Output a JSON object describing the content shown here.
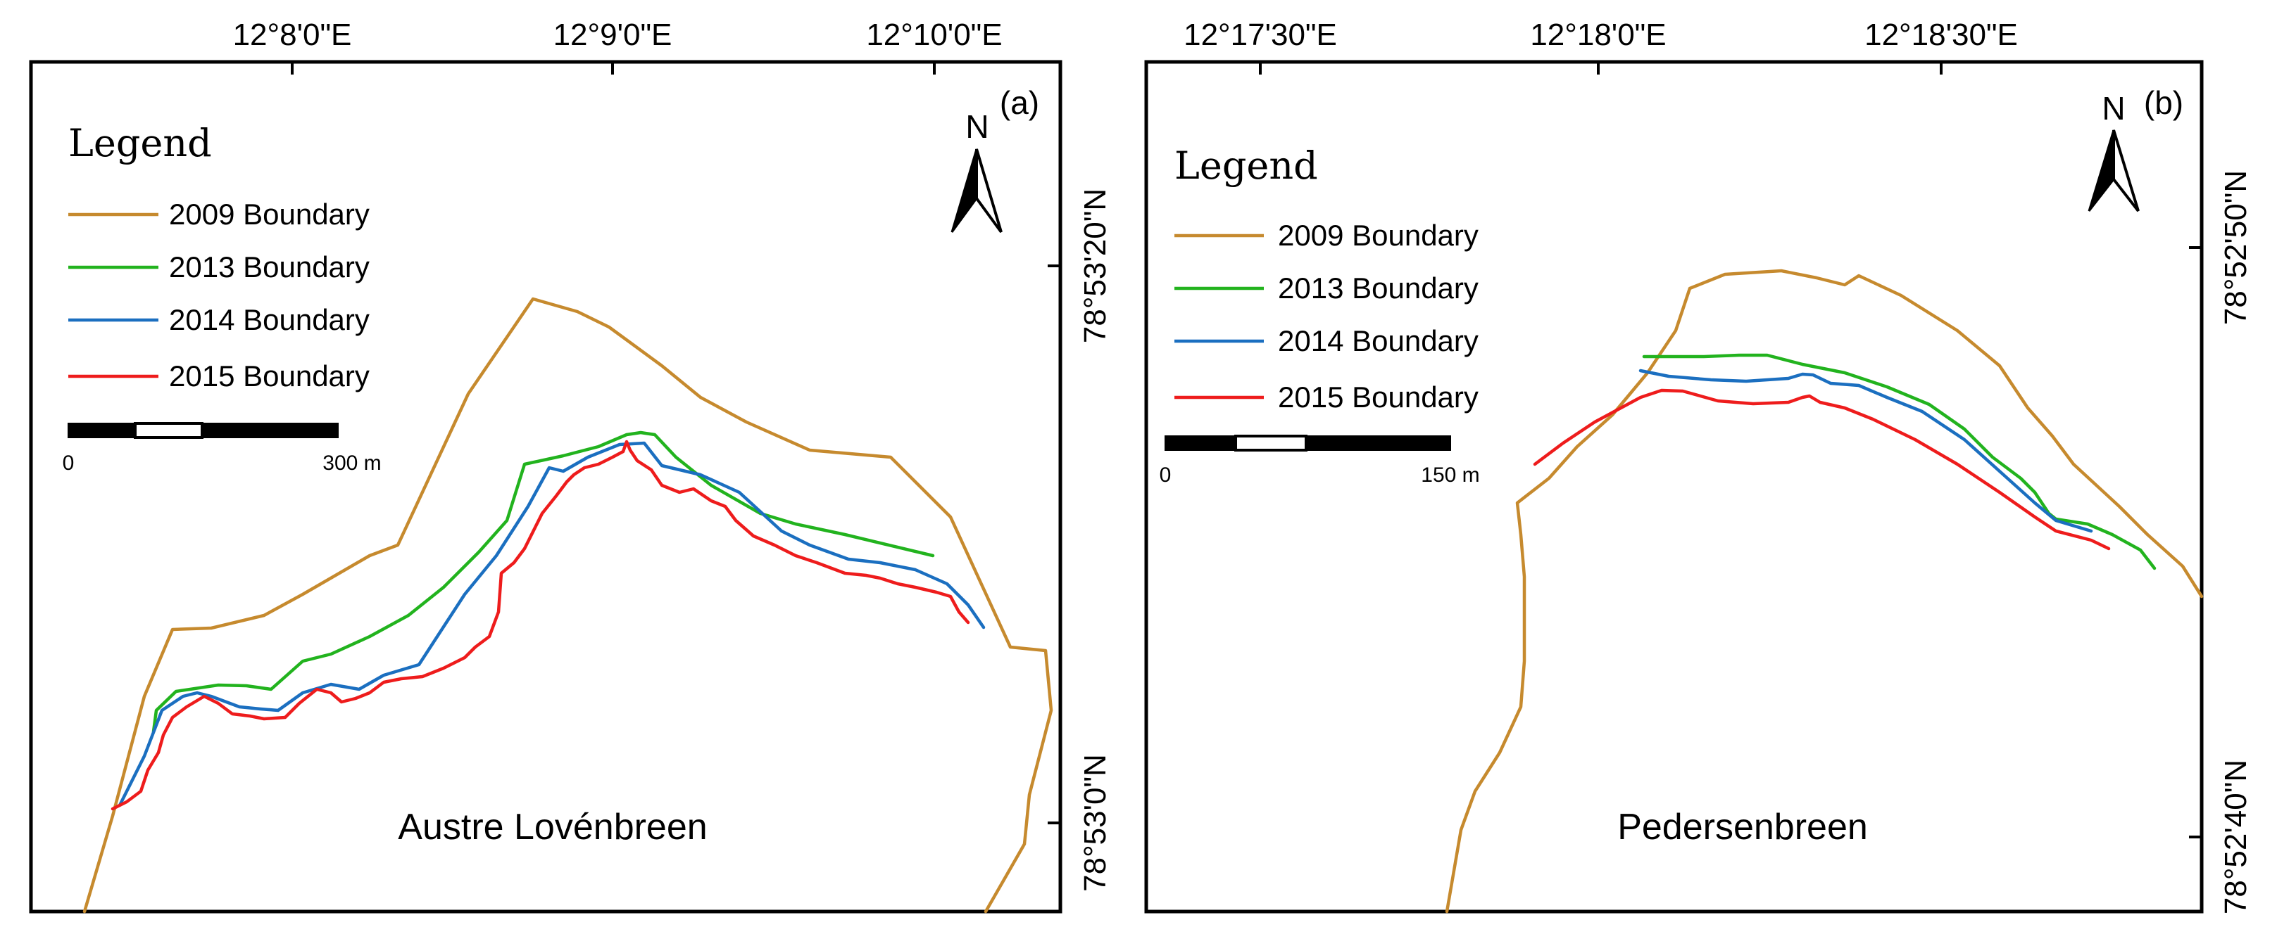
{
  "colors": {
    "b2009": "#C68A2E",
    "b2013": "#22B31E",
    "b2014": "#1B6FC0",
    "b2015": "#EE1C1C"
  },
  "panel_a": {
    "tag": "(a)",
    "glacier": "Austre Lovénbreen",
    "top_ticks": [
      "12°8'0\"E",
      "12°9'0\"E",
      "12°10'0\"E"
    ],
    "right_ticks": [
      "78°53'20\"N",
      "78°53'0\"N"
    ],
    "legend": {
      "title": "Legend",
      "items": [
        "2009 Boundary",
        "2013 Boundary",
        "2014 Boundary",
        "2015 Boundary"
      ]
    },
    "north": "N",
    "scale": {
      "start": "0",
      "end": "300 m"
    }
  },
  "panel_b": {
    "tag": "(b)",
    "glacier": "Pedersenbreen",
    "top_ticks": [
      "12°17'30\"E",
      "12°18'0\"E",
      "12°18'30\"E"
    ],
    "right_ticks": [
      "78°52'50\"N",
      "78°52'40\"N"
    ],
    "legend": {
      "title": "Legend",
      "items": [
        "2009 Boundary",
        "2013 Boundary",
        "2014 Boundary",
        "2015 Boundary"
      ]
    },
    "north": "N",
    "scale": {
      "start": "0",
      "end": "150 m"
    }
  }
}
